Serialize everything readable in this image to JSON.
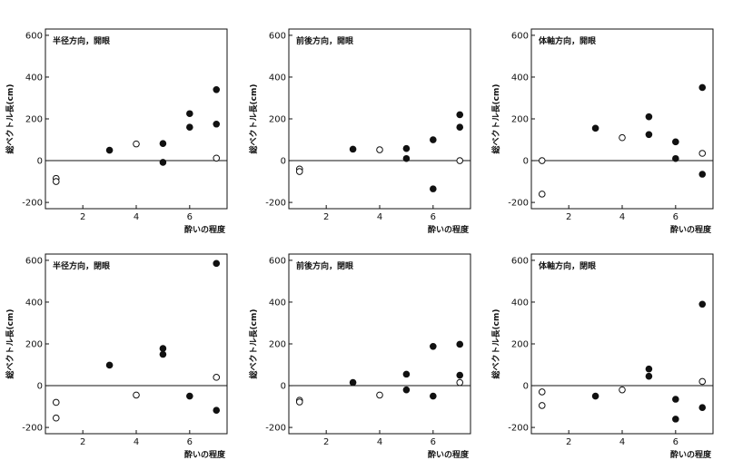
{
  "chart_data": [
    {
      "type": "scatter",
      "title": "半径方向，開眼",
      "xlabel": "酔いの程度",
      "ylabel": "総ベクトル長(cm)",
      "xlim": [
        0.6,
        7.4
      ],
      "ylim": [
        -230,
        630
      ],
      "xticks": [
        2,
        4,
        6
      ],
      "yticks": [
        -200,
        0,
        200,
        400,
        600
      ],
      "series": [
        {
          "marker": "open",
          "points": [
            [
              1,
              -85
            ],
            [
              1,
              -100
            ],
            [
              4,
              80
            ],
            [
              7,
              12
            ]
          ]
        },
        {
          "marker": "filled",
          "points": [
            [
              3,
              50
            ],
            [
              5,
              82
            ],
            [
              5,
              -8
            ],
            [
              6,
              225
            ],
            [
              6,
              160
            ],
            [
              7,
              340
            ],
            [
              7,
              175
            ]
          ]
        }
      ]
    },
    {
      "type": "scatter",
      "title": "前後方向，開眼",
      "xlabel": "酔いの程度",
      "ylabel": "総ベクトル長(cm)",
      "xlim": [
        0.6,
        7.4
      ],
      "ylim": [
        -230,
        630
      ],
      "xticks": [
        2,
        4,
        6
      ],
      "yticks": [
        -200,
        0,
        200,
        400,
        600
      ],
      "series": [
        {
          "marker": "open",
          "points": [
            [
              1,
              -40
            ],
            [
              1,
              -52
            ],
            [
              4,
              52
            ],
            [
              7,
              0
            ]
          ]
        },
        {
          "marker": "filled",
          "points": [
            [
              3,
              55
            ],
            [
              5,
              58
            ],
            [
              5,
              10
            ],
            [
              6,
              100
            ],
            [
              6,
              -135
            ],
            [
              7,
              220
            ],
            [
              7,
              160
            ]
          ]
        }
      ]
    },
    {
      "type": "scatter",
      "title": "体軸方向，開眼",
      "xlabel": "酔いの程度",
      "ylabel": "総ベクトル長(cm)",
      "xlim": [
        0.6,
        7.4
      ],
      "ylim": [
        -230,
        630
      ],
      "xticks": [
        2,
        4,
        6
      ],
      "yticks": [
        -200,
        0,
        200,
        400,
        600
      ],
      "series": [
        {
          "marker": "open",
          "points": [
            [
              1,
              0
            ],
            [
              1,
              -160
            ],
            [
              4,
              110
            ],
            [
              7,
              35
            ]
          ]
        },
        {
          "marker": "filled",
          "points": [
            [
              3,
              155
            ],
            [
              5,
              210
            ],
            [
              5,
              125
            ],
            [
              6,
              90
            ],
            [
              6,
              10
            ],
            [
              7,
              350
            ],
            [
              7,
              -65
            ]
          ]
        }
      ]
    },
    {
      "type": "scatter",
      "title": "半径方向，閉眼",
      "xlabel": "酔いの程度",
      "ylabel": "総ベクトル長(cm)",
      "xlim": [
        0.6,
        7.4
      ],
      "ylim": [
        -230,
        630
      ],
      "xticks": [
        2,
        4,
        6
      ],
      "yticks": [
        -200,
        0,
        200,
        400,
        600
      ],
      "series": [
        {
          "marker": "open",
          "points": [
            [
              1,
              -80
            ],
            [
              1,
              -155
            ],
            [
              4,
              -45
            ],
            [
              7,
              40
            ]
          ]
        },
        {
          "marker": "filled",
          "points": [
            [
              3,
              98
            ],
            [
              5,
              178
            ],
            [
              5,
              150
            ],
            [
              6,
              -50
            ],
            [
              7,
              585
            ],
            [
              7,
              -118
            ]
          ]
        }
      ]
    },
    {
      "type": "scatter",
      "title": "前後方向，閉眼",
      "xlabel": "酔いの程度",
      "ylabel": "総ベクトル長(cm)",
      "xlim": [
        0.6,
        7.4
      ],
      "ylim": [
        -230,
        630
      ],
      "xticks": [
        2,
        4,
        6
      ],
      "yticks": [
        -200,
        0,
        200,
        400,
        600
      ],
      "series": [
        {
          "marker": "open",
          "points": [
            [
              1,
              -70
            ],
            [
              1,
              -78
            ],
            [
              4,
              -45
            ],
            [
              7,
              15
            ]
          ]
        },
        {
          "marker": "filled",
          "points": [
            [
              3,
              15
            ],
            [
              5,
              55
            ],
            [
              5,
              -20
            ],
            [
              6,
              188
            ],
            [
              6,
              -50
            ],
            [
              7,
              198
            ],
            [
              7,
              50
            ]
          ]
        }
      ]
    },
    {
      "type": "scatter",
      "title": "体軸方向，閉眼",
      "xlabel": "酔いの程度",
      "ylabel": "総ベクトル長(cm)",
      "xlim": [
        0.6,
        7.4
      ],
      "ylim": [
        -230,
        630
      ],
      "xticks": [
        2,
        4,
        6
      ],
      "yticks": [
        -200,
        0,
        200,
        400,
        600
      ],
      "series": [
        {
          "marker": "open",
          "points": [
            [
              1,
              -30
            ],
            [
              1,
              -95
            ],
            [
              4,
              -20
            ],
            [
              7,
              20
            ]
          ]
        },
        {
          "marker": "filled",
          "points": [
            [
              3,
              -50
            ],
            [
              5,
              80
            ],
            [
              5,
              45
            ],
            [
              6,
              -65
            ],
            [
              6,
              -160
            ],
            [
              7,
              390
            ],
            [
              7,
              -105
            ]
          ]
        }
      ]
    }
  ]
}
